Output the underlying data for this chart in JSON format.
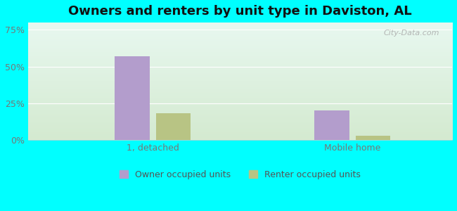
{
  "title": "Owners and renters by unit type in Daviston, AL",
  "categories": [
    "1, detached",
    "Mobile home"
  ],
  "owner_values": [
    57,
    20
  ],
  "renter_values": [
    18,
    3
  ],
  "owner_color": "#b39dcc",
  "renter_color": "#b8c484",
  "background_color": "#00ffff",
  "plot_bg_topleft": "#daf0e8",
  "plot_bg_topright": "#cce8f0",
  "plot_bg_bottom": "#daefd4",
  "yticks": [
    0,
    25,
    50,
    75
  ],
  "ytick_labels": [
    "0%",
    "25%",
    "50%",
    "75%"
  ],
  "ylim": [
    0,
    80
  ],
  "bar_width": 0.28,
  "legend_labels": [
    "Owner occupied units",
    "Renter occupied units"
  ],
  "watermark": "City-Data.com",
  "title_fontsize": 13,
  "tick_fontsize": 9,
  "legend_fontsize": 9
}
